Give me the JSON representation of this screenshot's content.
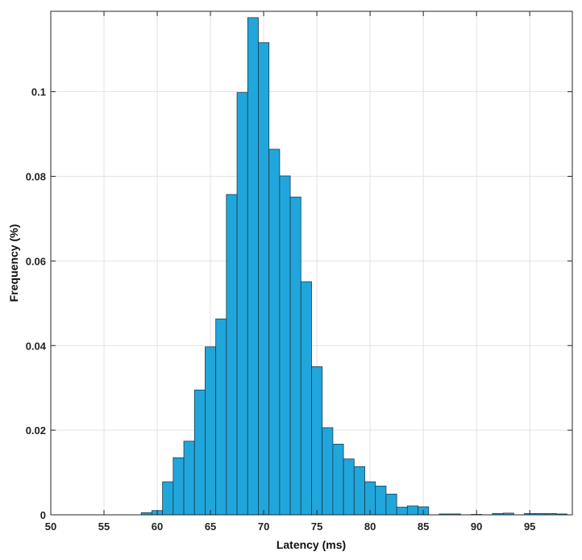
{
  "chart_data": {
    "type": "bar",
    "title": "",
    "xlabel": "Latency (ms)",
    "ylabel": "Frequency (%)",
    "xlim": [
      50,
      99
    ],
    "ylim": [
      0,
      0.119
    ],
    "x_ticks": [
      50,
      55,
      60,
      65,
      70,
      75,
      80,
      85,
      90,
      95
    ],
    "x_tick_labels": [
      "50",
      "55",
      "60",
      "65",
      "70",
      "75",
      "80",
      "85",
      "90",
      "95"
    ],
    "y_ticks": [
      0,
      0.02,
      0.04,
      0.06,
      0.08,
      0.1
    ],
    "y_tick_labels": [
      "0",
      "0.02",
      "0.04",
      "0.06",
      "0.08",
      "0.1"
    ],
    "grid": true,
    "legend": "none",
    "bar_color": "#21a6dc",
    "bar_edge_color": "#1a3b4a",
    "bins": [
      {
        "x0": 58.5,
        "x1": 59.5,
        "value": 0.0005
      },
      {
        "x0": 59.5,
        "x1": 60.5,
        "value": 0.001
      },
      {
        "x0": 60.5,
        "x1": 61.5,
        "value": 0.0078
      },
      {
        "x0": 61.5,
        "x1": 62.5,
        "value": 0.0135
      },
      {
        "x0": 62.5,
        "x1": 63.5,
        "value": 0.0174
      },
      {
        "x0": 63.5,
        "x1": 64.5,
        "value": 0.0295
      },
      {
        "x0": 64.5,
        "x1": 65.5,
        "value": 0.0397
      },
      {
        "x0": 65.5,
        "x1": 66.5,
        "value": 0.0463
      },
      {
        "x0": 66.5,
        "x1": 67.5,
        "value": 0.0757
      },
      {
        "x0": 67.5,
        "x1": 68.5,
        "value": 0.0998
      },
      {
        "x0": 68.5,
        "x1": 69.5,
        "value": 0.1175
      },
      {
        "x0": 69.5,
        "x1": 70.5,
        "value": 0.1116
      },
      {
        "x0": 70.5,
        "x1": 71.5,
        "value": 0.0864
      },
      {
        "x0": 71.5,
        "x1": 72.5,
        "value": 0.0801
      },
      {
        "x0": 72.5,
        "x1": 73.5,
        "value": 0.0751
      },
      {
        "x0": 73.5,
        "x1": 74.5,
        "value": 0.0551
      },
      {
        "x0": 74.5,
        "x1": 75.5,
        "value": 0.035
      },
      {
        "x0": 75.5,
        "x1": 76.5,
        "value": 0.0206
      },
      {
        "x0": 76.5,
        "x1": 77.5,
        "value": 0.0167
      },
      {
        "x0": 77.5,
        "x1": 78.5,
        "value": 0.0132
      },
      {
        "x0": 78.5,
        "x1": 79.5,
        "value": 0.0114
      },
      {
        "x0": 79.5,
        "x1": 80.5,
        "value": 0.0078
      },
      {
        "x0": 80.5,
        "x1": 81.5,
        "value": 0.0068
      },
      {
        "x0": 81.5,
        "x1": 82.5,
        "value": 0.0049
      },
      {
        "x0": 82.5,
        "x1": 83.5,
        "value": 0.0018
      },
      {
        "x0": 83.5,
        "x1": 84.5,
        "value": 0.0021
      },
      {
        "x0": 84.5,
        "x1": 85.5,
        "value": 0.0019
      },
      {
        "x0": 86.5,
        "x1": 87.5,
        "value": 0.0002
      },
      {
        "x0": 87.5,
        "x1": 88.5,
        "value": 0.0002
      },
      {
        "x0": 89.5,
        "x1": 90.5,
        "value": 0.0001
      },
      {
        "x0": 91.5,
        "x1": 92.5,
        "value": 0.0003
      },
      {
        "x0": 92.5,
        "x1": 93.5,
        "value": 0.0004
      },
      {
        "x0": 94.5,
        "x1": 95.5,
        "value": 0.0003
      },
      {
        "x0": 95.5,
        "x1": 96.5,
        "value": 0.0003
      },
      {
        "x0": 96.5,
        "x1": 97.5,
        "value": 0.0003
      },
      {
        "x0": 97.5,
        "x1": 98.5,
        "value": 0.0002
      }
    ]
  }
}
